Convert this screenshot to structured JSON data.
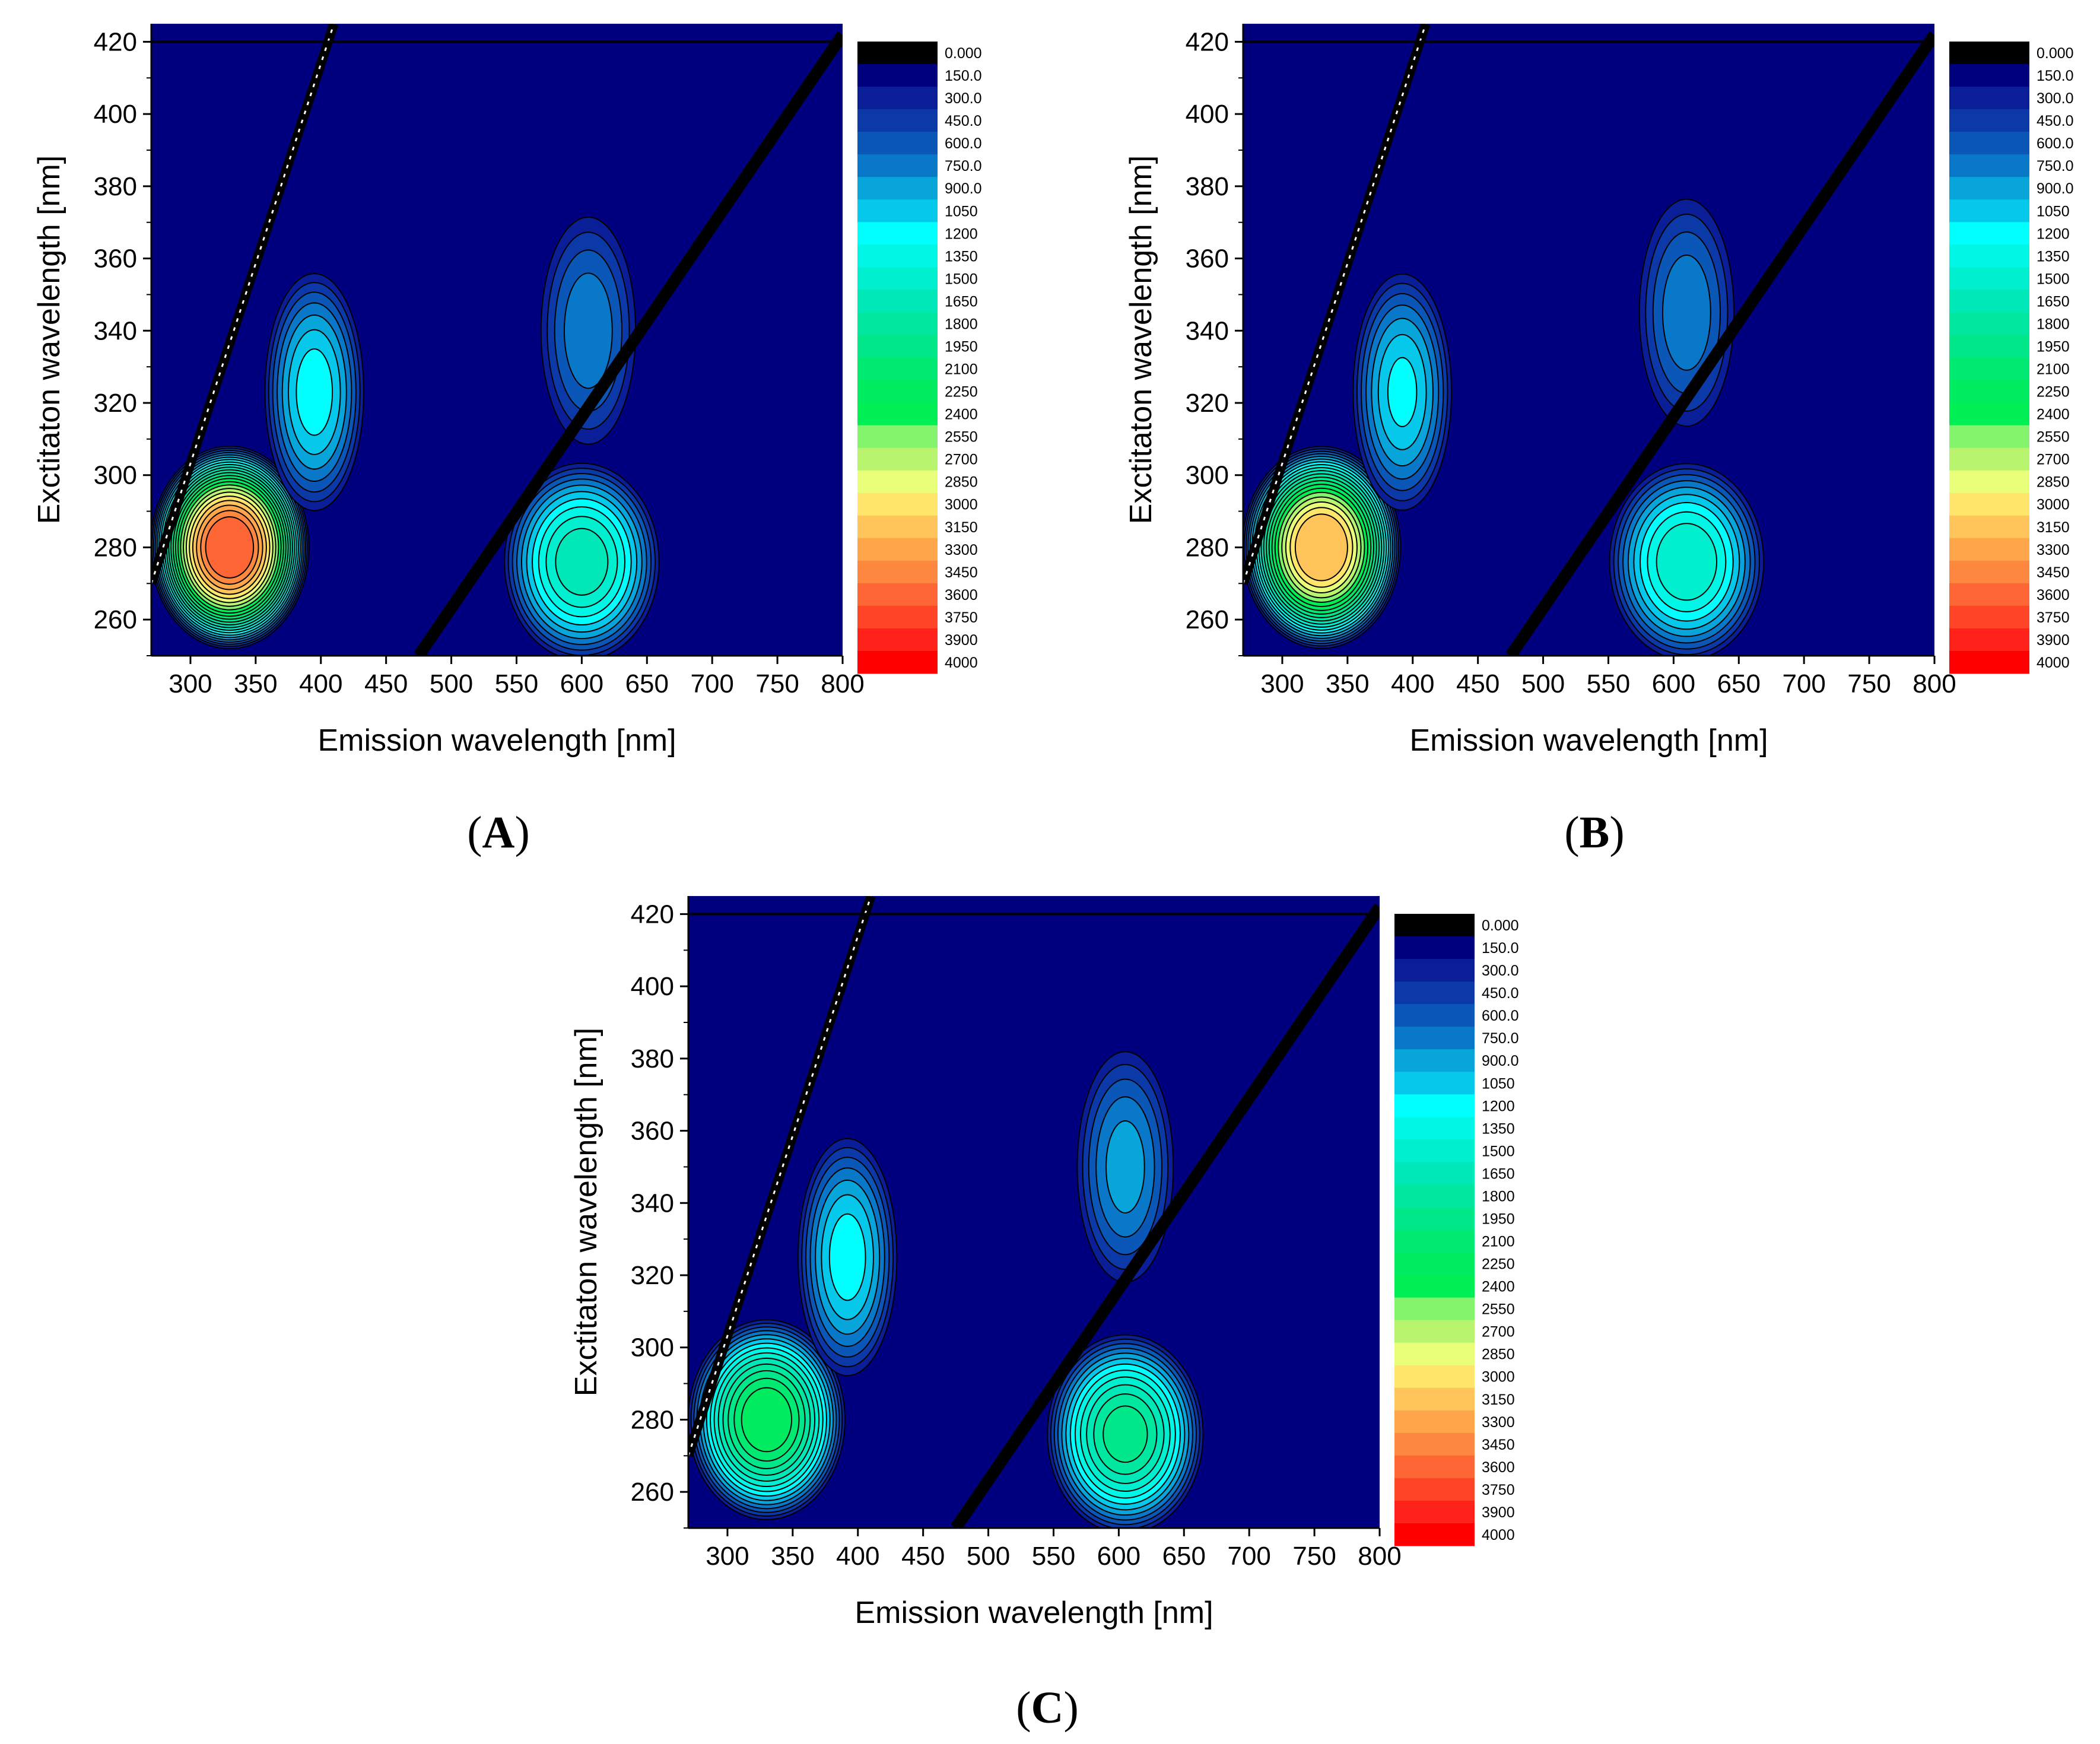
{
  "figure": {
    "captions": [
      {
        "open": "(",
        "letter": "A",
        "close": ")"
      },
      {
        "open": "(",
        "letter": "B",
        "close": ")"
      },
      {
        "open": "(",
        "letter": "C",
        "close": ")"
      }
    ]
  },
  "chart_data": [
    {
      "panel": "A",
      "type": "contour",
      "xlabel": "Emission wavelength [nm]",
      "ylabel": "Exctitaton wavelength [nm]",
      "xlim": [
        270,
        800
      ],
      "ylim": [
        250,
        425
      ],
      "xticks": [
        300,
        350,
        400,
        450,
        500,
        550,
        600,
        650,
        700,
        750,
        800
      ],
      "yticks": [
        260,
        280,
        300,
        320,
        340,
        360,
        380,
        400,
        420
      ],
      "levels": [
        "0.000",
        "150.0",
        "300.0",
        "450.0",
        "600.0",
        "750.0",
        "900.0",
        "1050",
        "1200",
        "1350",
        "1500",
        "1650",
        "1800",
        "1950",
        "2100",
        "2250",
        "2400",
        "2550",
        "2700",
        "2850",
        "3000",
        "3150",
        "3300",
        "3450",
        "3600",
        "3750",
        "3900",
        "4000"
      ],
      "colors": [
        "#000000",
        "#00007f",
        "#0a1f97",
        "#0b3aa8",
        "#0a57b8",
        "#0a78c8",
        "#08a5db",
        "#06c8ea",
        "#00ffff",
        "#00f7e6",
        "#00efcf",
        "#00e8b8",
        "#00e8a0",
        "#00e889",
        "#00ea72",
        "#00ec60",
        "#00ef55",
        "#83f46c",
        "#b9f46f",
        "#e9ff7a",
        "#ffe56a",
        "#ffc55a",
        "#ffa64b",
        "#ff8840",
        "#ff6635",
        "#ff4428",
        "#ff221a",
        "#ff0000"
      ],
      "peaks": [
        {
          "em": 330,
          "ex": 280,
          "intensity": 3500
        },
        {
          "em": 395,
          "ex": 323,
          "intensity": 1100
        },
        {
          "em": 600,
          "ex": 276,
          "intensity": 1550
        },
        {
          "em": 605,
          "ex": 340,
          "intensity": 700
        }
      ],
      "scatter_lines": [
        {
          "name": "first-order Rayleigh",
          "from": [
            270,
            270
          ],
          "to": [
            410,
            425
          ]
        },
        {
          "name": "second-order Rayleigh",
          "from": [
            475,
            250
          ],
          "to": [
            800,
            422
          ]
        }
      ]
    },
    {
      "panel": "B",
      "type": "contour",
      "xlabel": "Emission wavelength [nm]",
      "ylabel": "Exctitaton wavelength [nm]",
      "xlim": [
        270,
        800
      ],
      "ylim": [
        250,
        425
      ],
      "xticks": [
        300,
        350,
        400,
        450,
        500,
        550,
        600,
        650,
        700,
        750,
        800
      ],
      "yticks": [
        260,
        280,
        300,
        320,
        340,
        360,
        380,
        400,
        420
      ],
      "levels": [
        "0.000",
        "150.0",
        "300.0",
        "450.0",
        "600.0",
        "750.0",
        "900.0",
        "1050",
        "1200",
        "1350",
        "1500",
        "1650",
        "1800",
        "1950",
        "2100",
        "2250",
        "2400",
        "2550",
        "2700",
        "2850",
        "3000",
        "3150",
        "3300",
        "3450",
        "3600",
        "3750",
        "3900",
        "4000"
      ],
      "colors": [
        "#000000",
        "#00007f",
        "#0a1f97",
        "#0b3aa8",
        "#0a57b8",
        "#0a78c8",
        "#08a5db",
        "#06c8ea",
        "#00ffff",
        "#00f7e6",
        "#00efcf",
        "#00e8b8",
        "#00e8a0",
        "#00e889",
        "#00ea72",
        "#00ec60",
        "#00ef55",
        "#83f46c",
        "#b9f46f",
        "#e9ff7a",
        "#ffe56a",
        "#ffc55a",
        "#ffa64b",
        "#ff8840",
        "#ff6635",
        "#ff4428",
        "#ff221a",
        "#ff0000"
      ],
      "peaks": [
        {
          "em": 330,
          "ex": 280,
          "intensity": 3100
        },
        {
          "em": 392,
          "ex": 323,
          "intensity": 1050
        },
        {
          "em": 610,
          "ex": 276,
          "intensity": 1450
        },
        {
          "em": 610,
          "ex": 345,
          "intensity": 700
        }
      ],
      "scatter_lines": [
        {
          "name": "first-order Rayleigh",
          "from": [
            270,
            270
          ],
          "to": [
            410,
            425
          ]
        },
        {
          "name": "second-order Rayleigh",
          "from": [
            475,
            250
          ],
          "to": [
            800,
            422
          ]
        }
      ]
    },
    {
      "panel": "C",
      "type": "contour",
      "xlabel": "Emission wavelength [nm]",
      "ylabel": "Exctitaton wavelength [nm]",
      "xlim": [
        270,
        800
      ],
      "ylim": [
        250,
        425
      ],
      "xticks": [
        300,
        350,
        400,
        450,
        500,
        550,
        600,
        650,
        700,
        750,
        800
      ],
      "yticks": [
        260,
        280,
        300,
        320,
        340,
        360,
        380,
        400,
        420
      ],
      "levels": [
        "0.000",
        "150.0",
        "300.0",
        "450.0",
        "600.0",
        "750.0",
        "900.0",
        "1050",
        "1200",
        "1350",
        "1500",
        "1650",
        "1800",
        "1950",
        "2100",
        "2250",
        "2400",
        "2550",
        "2700",
        "2850",
        "3000",
        "3150",
        "3300",
        "3450",
        "3600",
        "3750",
        "3900",
        "4000"
      ],
      "colors": [
        "#000000",
        "#00007f",
        "#0a1f97",
        "#0b3aa8",
        "#0a57b8",
        "#0a78c8",
        "#08a5db",
        "#06c8ea",
        "#00ffff",
        "#00f7e6",
        "#00efcf",
        "#00e8b8",
        "#00e8a0",
        "#00e889",
        "#00ea72",
        "#00ec60",
        "#00ef55",
        "#83f46c",
        "#b9f46f",
        "#e9ff7a",
        "#ffe56a",
        "#ffc55a",
        "#ffa64b",
        "#ff8840",
        "#ff6635",
        "#ff4428",
        "#ff221a",
        "#ff0000"
      ],
      "peaks": [
        {
          "em": 330,
          "ex": 280,
          "intensity": 2150
        },
        {
          "em": 392,
          "ex": 325,
          "intensity": 1100
        },
        {
          "em": 605,
          "ex": 276,
          "intensity": 1800
        },
        {
          "em": 605,
          "ex": 350,
          "intensity": 800
        }
      ],
      "scatter_lines": [
        {
          "name": "first-order Rayleigh",
          "from": [
            270,
            270
          ],
          "to": [
            410,
            425
          ]
        },
        {
          "name": "second-order Rayleigh",
          "from": [
            475,
            250
          ],
          "to": [
            800,
            422
          ]
        }
      ]
    }
  ]
}
